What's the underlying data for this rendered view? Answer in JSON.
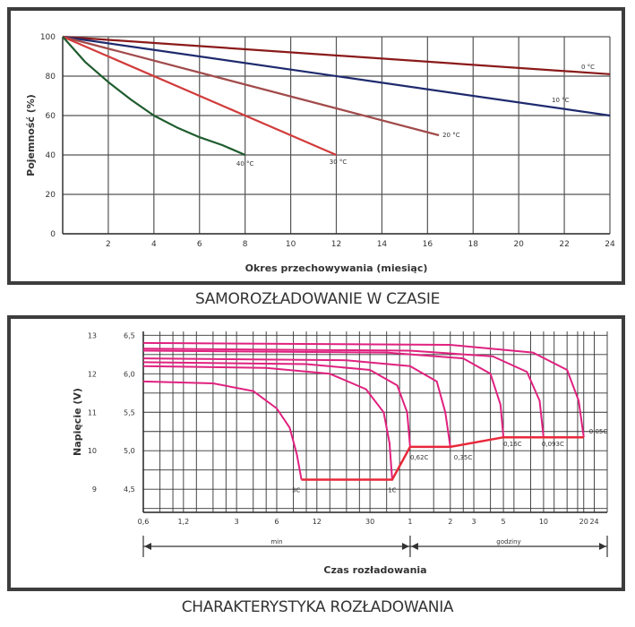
{
  "chart_data": [
    {
      "type": "line",
      "caption": "SAMOROZŁADOWANIE W CZASIE",
      "xlabel": "Okres przechowywania (miesiąc)",
      "ylabel": "Pojemność (%)",
      "xlim": [
        0,
        24
      ],
      "ylim": [
        0,
        100
      ],
      "xticks": [
        2,
        4,
        6,
        8,
        10,
        12,
        14,
        16,
        18,
        20,
        22,
        24
      ],
      "yticks": [
        100,
        80,
        60,
        40,
        20,
        0
      ],
      "grid": true,
      "series": [
        {
          "name": "0 °C",
          "color": "#8b1a1a",
          "x": [
            0,
            24
          ],
          "y": [
            100,
            81
          ]
        },
        {
          "name": "10 °C",
          "color": "#1e2a6e",
          "x": [
            0,
            24
          ],
          "y": [
            100,
            60
          ]
        },
        {
          "name": "20 °C",
          "color": "#a24b4b",
          "x": [
            0,
            16.5
          ],
          "y": [
            100,
            50
          ]
        },
        {
          "name": "30 °C",
          "color": "#d23b3b",
          "x": [
            0,
            12
          ],
          "y": [
            100,
            40
          ]
        },
        {
          "name": "40 °C",
          "color": "#1f5c2e",
          "x": [
            0,
            1,
            2,
            3,
            4,
            5,
            6,
            7,
            8
          ],
          "y": [
            100,
            87,
            77,
            68,
            60,
            54,
            49,
            45,
            40
          ]
        }
      ]
    },
    {
      "type": "line",
      "caption": "CHARAKTERYSTYKA ROZŁADOWANIA",
      "xlabel": "Czas rozładowania",
      "ylabel": "Napięcie (V)",
      "x_scale": "log",
      "xticks": [
        "0,6",
        "1,2",
        "3",
        "6",
        "12",
        "30",
        "1",
        "2",
        "3",
        "5",
        "10",
        "20",
        "24"
      ],
      "x_units": [
        {
          "label": "min",
          "from": "0,6",
          "to": "60"
        },
        {
          "label": "godziny",
          "from": "1",
          "to": "24"
        }
      ],
      "yticks_left": [
        "13",
        "12",
        "11",
        "10",
        "9"
      ],
      "yticks_right": [
        "6,5",
        "6,0",
        "5,5",
        "5,0",
        "4,5"
      ],
      "grid": true,
      "color": "#e0217f",
      "cutoff_color": "#e8283a",
      "series": [
        {
          "name": "3C",
          "x_minutes": [
            0.6,
            2,
            4,
            6,
            7.5,
            8.5,
            9.2
          ],
          "y": [
            11.8,
            11.75,
            11.55,
            11.1,
            10.6,
            9.9,
            9.25
          ]
        },
        {
          "name": "1C",
          "x_minutes": [
            0.6,
            5,
            15,
            28,
            38,
            42,
            44
          ],
          "y": [
            12.2,
            12.15,
            12.0,
            11.6,
            11.0,
            10.2,
            9.25
          ]
        },
        {
          "name": "0,62C",
          "x_minutes": [
            0.6,
            10,
            30,
            48,
            57,
            60
          ],
          "y": [
            12.3,
            12.25,
            12.1,
            11.7,
            11.0,
            10.1
          ]
        },
        {
          "name": "0,35C",
          "x_minutes": [
            0.6,
            20,
            60,
            95,
            110,
            120
          ],
          "y": [
            12.4,
            12.35,
            12.2,
            11.8,
            11.0,
            10.1
          ]
        },
        {
          "name": "0,16C",
          "x_minutes": [
            0.6,
            40,
            150,
            240,
            285,
            300
          ],
          "y": [
            12.6,
            12.55,
            12.4,
            12.0,
            11.2,
            10.35
          ]
        },
        {
          "name": "0,093C",
          "x_minutes": [
            0.6,
            60,
            250,
            450,
            560,
            600
          ],
          "y": [
            12.65,
            12.6,
            12.45,
            12.05,
            11.3,
            10.35
          ]
        },
        {
          "name": "0,05C",
          "x_minutes": [
            0.6,
            120,
            500,
            900,
            1100,
            1200
          ],
          "y": [
            12.8,
            12.75,
            12.55,
            12.1,
            11.3,
            10.35
          ]
        }
      ],
      "cutoff_line": {
        "x_minutes": [
          9.2,
          44,
          60,
          120,
          300,
          600,
          1200
        ],
        "y": [
          9.25,
          9.25,
          10.1,
          10.1,
          10.35,
          10.35,
          10.35
        ]
      }
    }
  ]
}
